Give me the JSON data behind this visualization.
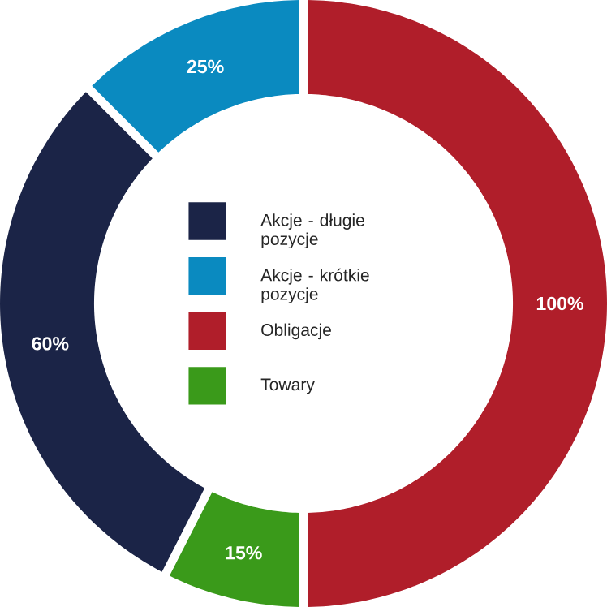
{
  "chart_data": {
    "type": "donut",
    "categories": [
      "Akcje - długie pozycje",
      "Akcje - krótkie pozycje",
      "Obligacje",
      "Towary"
    ],
    "values": [
      60,
      25,
      100,
      15
    ],
    "colors": [
      "#1b2447",
      "#0a8ac0",
      "#b01e2a",
      "#3a9a1a"
    ],
    "value_labels": [
      "60%",
      "25%",
      "100%",
      "15%"
    ],
    "legend": "center"
  }
}
